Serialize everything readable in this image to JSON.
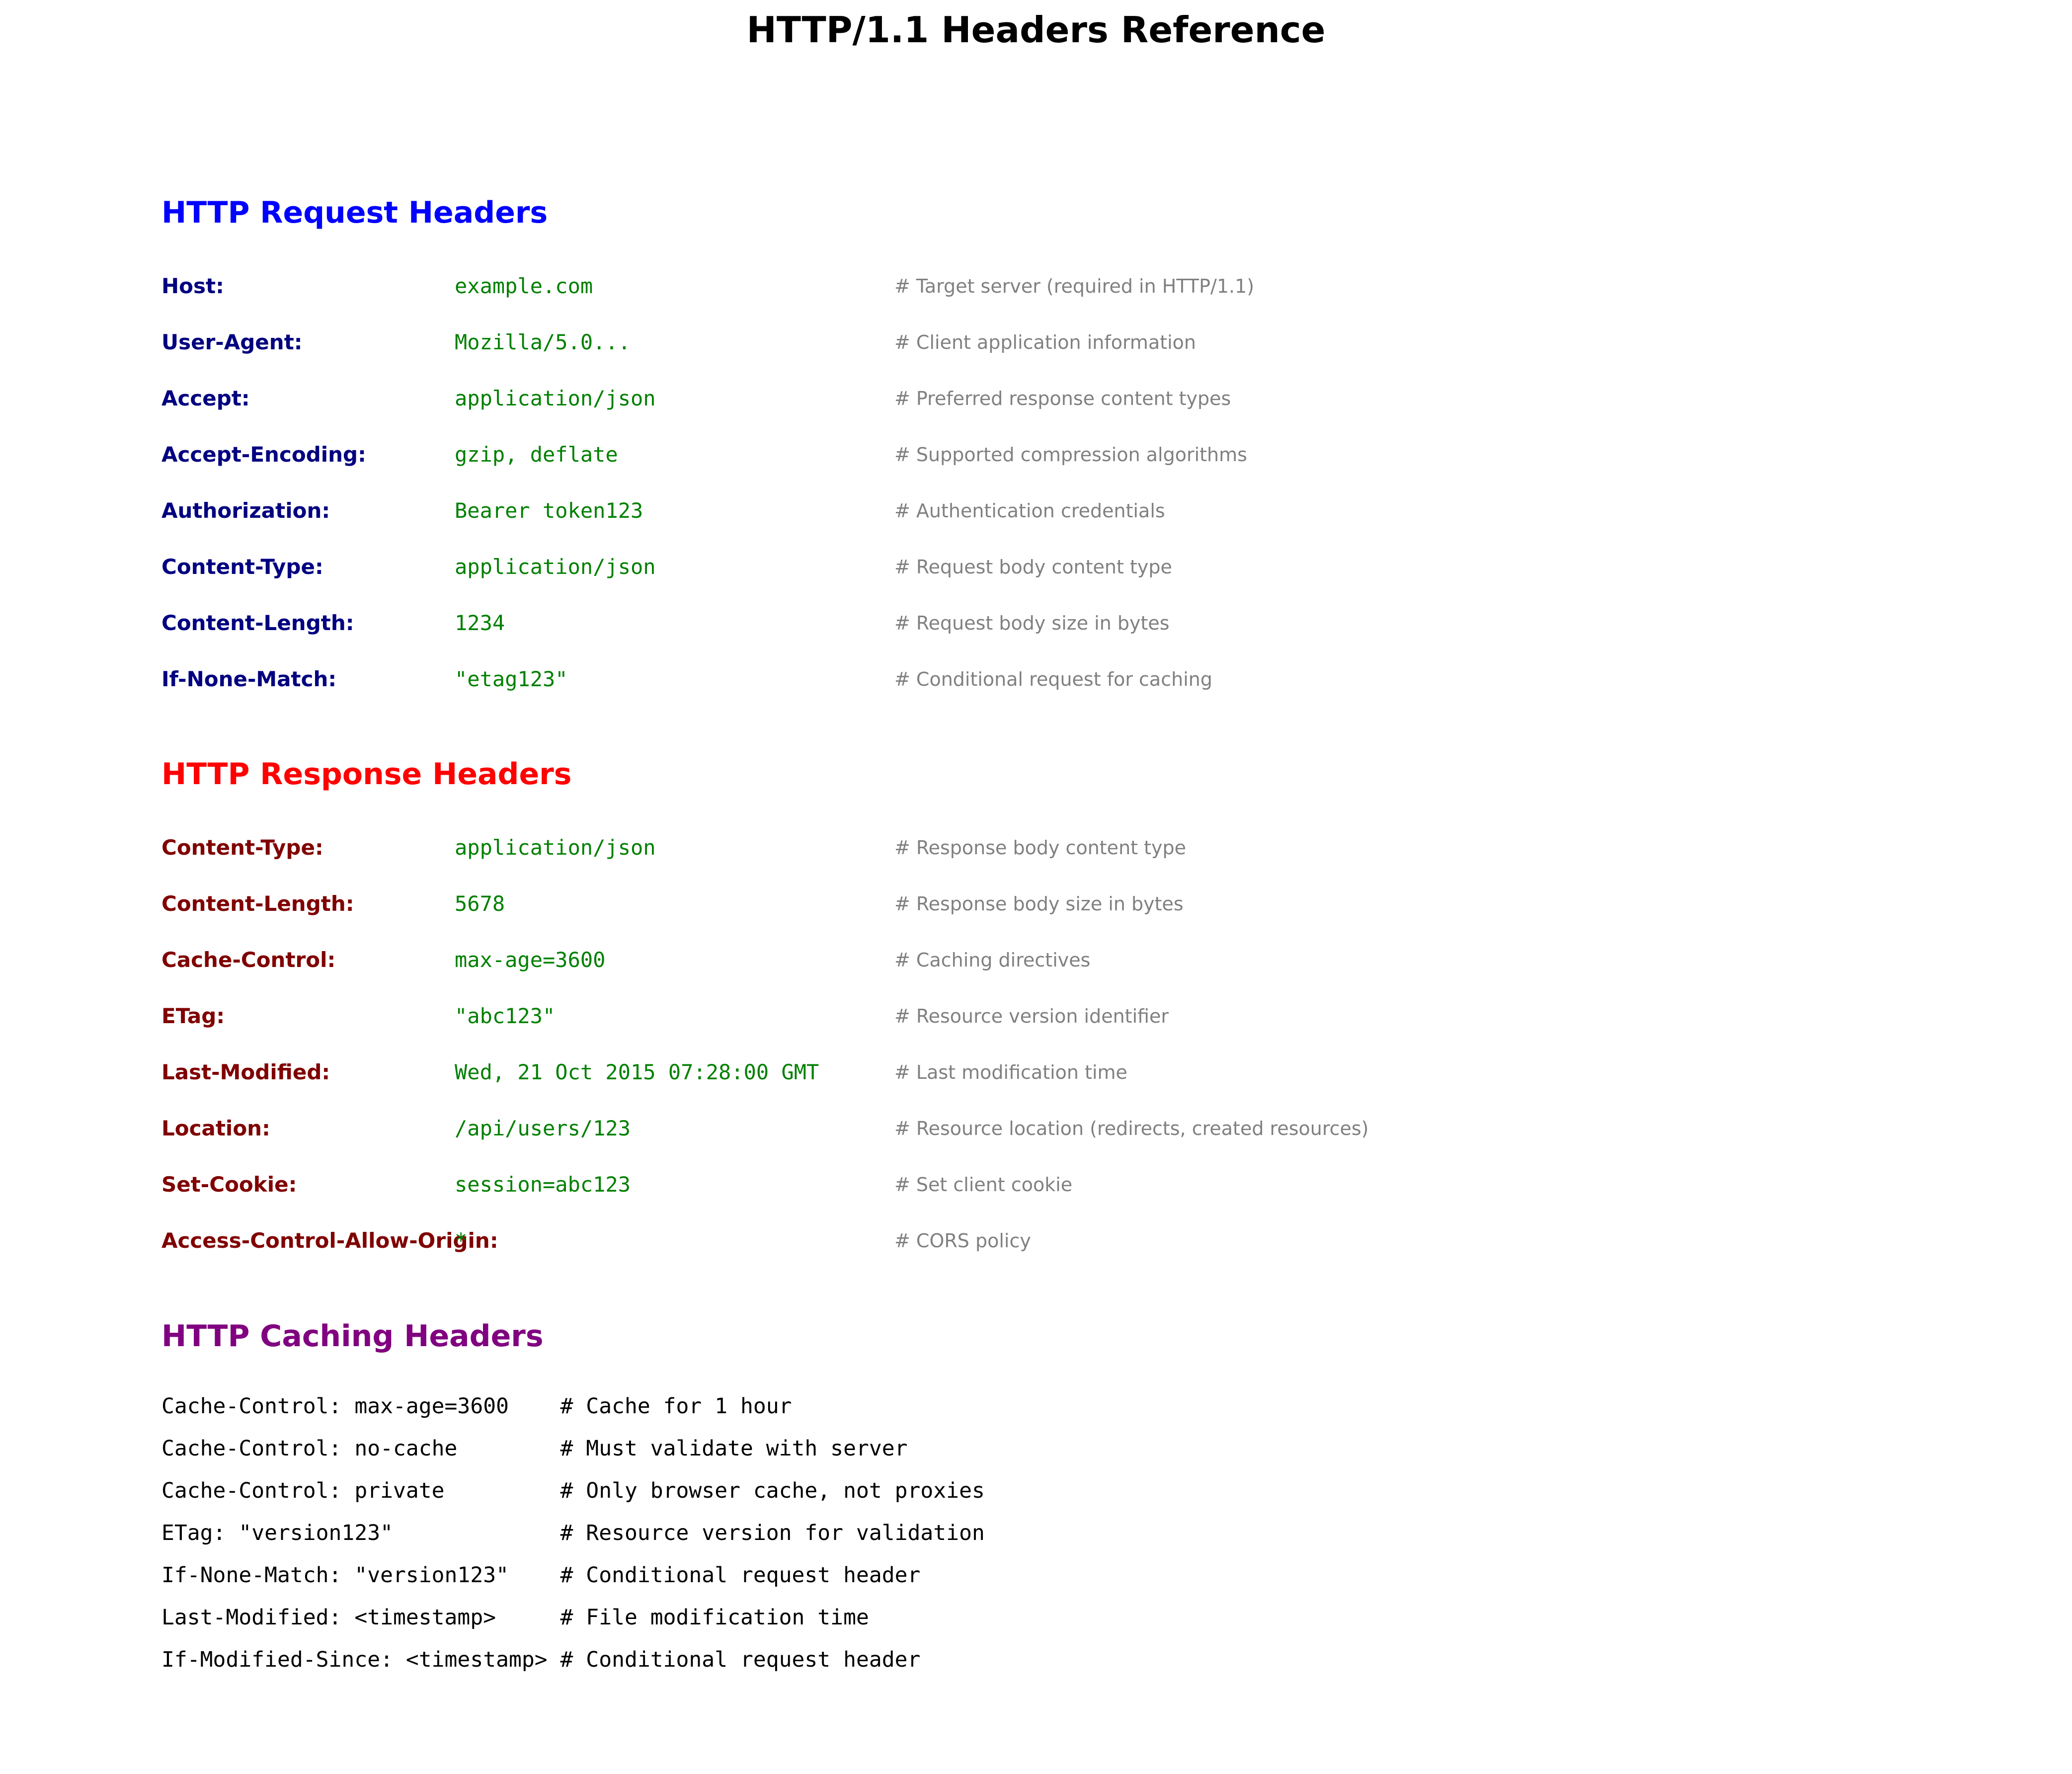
{
  "title": "HTTP/1.1 Headers Reference",
  "request": {
    "heading": "HTTP Request Headers",
    "heading_color": "#0000ff",
    "name_color": "#000080",
    "headers": [
      {
        "name": "Host:",
        "value": "example.com",
        "comment": "# Target server (required in HTTP/1.1)"
      },
      {
        "name": "User-Agent:",
        "value": "Mozilla/5.0...",
        "comment": "# Client application information"
      },
      {
        "name": "Accept:",
        "value": "application/json",
        "comment": "# Preferred response content types"
      },
      {
        "name": "Accept-Encoding:",
        "value": "gzip, deflate",
        "comment": "# Supported compression algorithms"
      },
      {
        "name": "Authorization:",
        "value": "Bearer token123",
        "comment": "# Authentication credentials"
      },
      {
        "name": "Content-Type:",
        "value": "application/json",
        "comment": "# Request body content type"
      },
      {
        "name": "Content-Length:",
        "value": "1234",
        "comment": "# Request body size in bytes"
      },
      {
        "name": "If-None-Match:",
        "value": "\"etag123\"",
        "comment": "# Conditional request for caching"
      }
    ]
  },
  "response": {
    "heading": "HTTP Response Headers",
    "heading_color": "#ff0000",
    "name_color": "#800000",
    "headers": [
      {
        "name": "Content-Type:",
        "value": "application/json",
        "comment": "# Response body content type"
      },
      {
        "name": "Content-Length:",
        "value": "5678",
        "comment": "# Response body size in bytes"
      },
      {
        "name": "Cache-Control:",
        "value": "max-age=3600",
        "comment": "# Caching directives"
      },
      {
        "name": "ETag:",
        "value": "\"abc123\"",
        "comment": "# Resource version identifier"
      },
      {
        "name": "Last-Modified:",
        "value": "Wed, 21 Oct 2015 07:28:00 GMT",
        "comment": "# Last modification time"
      },
      {
        "name": "Location:",
        "value": "/api/users/123",
        "comment": "# Resource location (redirects, created resources)"
      },
      {
        "name": "Set-Cookie:",
        "value": "session=abc123",
        "comment": "# Set client cookie"
      },
      {
        "name": "Access-Control-Allow-Origin:",
        "value": "*",
        "comment": "# CORS policy"
      }
    ]
  },
  "caching": {
    "heading": "HTTP Caching Headers",
    "heading_color": "#800080",
    "lines": [
      "Cache-Control: max-age=3600    # Cache for 1 hour",
      "Cache-Control: no-cache        # Must validate with server",
      "Cache-Control: private         # Only browser cache, not proxies",
      "ETag: \"version123\"             # Resource version for validation",
      "If-None-Match: \"version123\"    # Conditional request header",
      "Last-Modified: <timestamp>     # File modification time",
      "If-Modified-Since: <timestamp> # Conditional request header"
    ]
  }
}
